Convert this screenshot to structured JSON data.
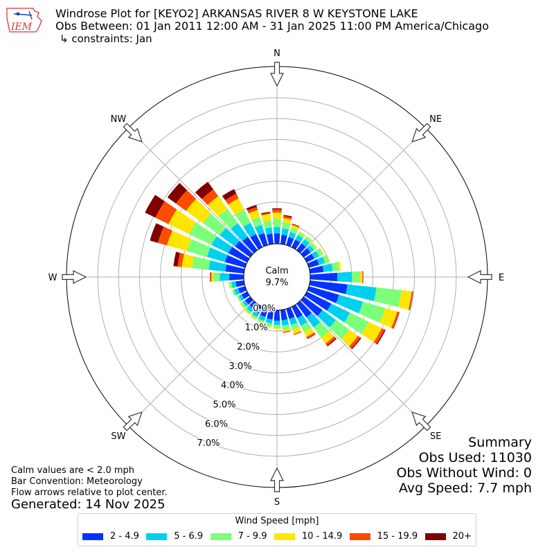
{
  "header": {
    "logo_text": "IEM",
    "title": "Windrose Plot for [KEYO2] ARKANSAS RIVER 8 W KEYSTONE LAKE",
    "subtitle": "Obs Between: 01 Jan 2011 12:00 AM - 31 Jan 2025 11:00 PM America/Chicago",
    "constraints": "↳ constraints: Jan"
  },
  "notes": {
    "calm_note": "Calm values are < 2.0 mph",
    "bar_convention": "Bar Convention: Meteorology",
    "flow_note": "Flow arrows relative to plot center.",
    "generated": "Generated: 14 Nov 2025"
  },
  "summary": {
    "heading": "Summary",
    "obs_used": "Obs Used: 11030",
    "obs_without_wind": "Obs Without Wind: 0",
    "avg_speed": "Avg Speed: 7.7 mph"
  },
  "colors": {
    "bins": [
      "#0433ff",
      "#00d0f0",
      "#7cff7a",
      "#ffe600",
      "#ff4a00",
      "#800000"
    ]
  },
  "chart_data": {
    "type": "windrose",
    "calm_label": "Calm",
    "calm_value": "9.7%",
    "radial_ticks": [
      0,
      1,
      2,
      3,
      4,
      5,
      6,
      7
    ],
    "radial_tick_labels": [
      "0.0%",
      "1.0%",
      "2.0%",
      "3.0%",
      "4.0%",
      "5.0%",
      "6.0%",
      "7.0%"
    ],
    "rmax": 8.5,
    "compass_labels": [
      "N",
      "NE",
      "E",
      "SE",
      "S",
      "SW",
      "W",
      "NW"
    ],
    "direction_step_deg": 10,
    "directions_deg": [
      0,
      10,
      20,
      30,
      40,
      50,
      60,
      70,
      80,
      90,
      100,
      110,
      120,
      130,
      140,
      150,
      160,
      170,
      180,
      190,
      200,
      210,
      220,
      230,
      240,
      250,
      260,
      270,
      280,
      290,
      300,
      310,
      320,
      330,
      340,
      350
    ],
    "legend_title": "Wind Speed [mph]",
    "speed_bins": [
      "2 - 4.9",
      "5 - 6.9",
      "7 - 9.9",
      "10 - 14.9",
      "15 - 19.9",
      "20+"
    ],
    "series": [
      {
        "name": "2 - 4.9",
        "values": [
          0.5,
          0.45,
          0.4,
          0.4,
          0.4,
          0.4,
          0.4,
          0.5,
          0.65,
          1.3,
          1.8,
          1.5,
          1.3,
          1.1,
          0.8,
          0.6,
          0.5,
          0.5,
          0.5,
          0.45,
          0.4,
          0.35,
          0.3,
          0.3,
          0.3,
          0.35,
          0.4,
          0.7,
          0.9,
          1.0,
          1.0,
          0.9,
          0.8,
          0.7,
          0.6,
          0.5
        ]
      },
      {
        "name": "5 - 6.9",
        "values": [
          0.3,
          0.3,
          0.25,
          0.25,
          0.25,
          0.2,
          0.25,
          0.3,
          0.45,
          0.7,
          1.4,
          1.2,
          1.0,
          0.8,
          0.6,
          0.4,
          0.3,
          0.25,
          0.2,
          0.2,
          0.2,
          0.2,
          0.2,
          0.15,
          0.15,
          0.2,
          0.2,
          0.45,
          0.8,
          0.9,
          0.9,
          0.9,
          0.8,
          0.6,
          0.4,
          0.3
        ]
      },
      {
        "name": "7 - 9.9",
        "values": [
          0.4,
          0.3,
          0.2,
          0.15,
          0.15,
          0.15,
          0.2,
          0.2,
          0.3,
          0.4,
          1.2,
          1.1,
          1.0,
          0.8,
          0.6,
          0.35,
          0.25,
          0.2,
          0.15,
          0.15,
          0.1,
          0.1,
          0.1,
          0.1,
          0.1,
          0.1,
          0.1,
          0.3,
          0.8,
          1.0,
          1.2,
          1.0,
          0.85,
          0.7,
          0.4,
          0.35
        ]
      },
      {
        "name": "10 - 14.9",
        "values": [
          0.3,
          0.2,
          0.15,
          0.05,
          0.05,
          0.05,
          0.05,
          0.05,
          0.1,
          0.1,
          0.5,
          0.6,
          0.7,
          0.5,
          0.35,
          0.25,
          0.2,
          0.1,
          0.05,
          0.05,
          0.05,
          0.05,
          0.05,
          0.05,
          0.0,
          0.0,
          0.05,
          0.1,
          0.5,
          1.0,
          1.1,
          1.0,
          0.75,
          0.6,
          0.35,
          0.3
        ]
      },
      {
        "name": "15 - 19.9",
        "values": [
          0.15,
          0.1,
          0.05,
          0.0,
          0.0,
          0.0,
          0.0,
          0.0,
          0.0,
          0.05,
          0.05,
          0.1,
          0.15,
          0.15,
          0.12,
          0.1,
          0.05,
          0.05,
          0.0,
          0.0,
          0.0,
          0.0,
          0.0,
          0.0,
          0.0,
          0.0,
          0.0,
          0.05,
          0.2,
          0.45,
          0.7,
          0.6,
          0.4,
          0.25,
          0.15,
          0.05
        ]
      },
      {
        "name": "20+",
        "values": [
          0.05,
          0.05,
          0.02,
          0.0,
          0.0,
          0.0,
          0.0,
          0.0,
          0.0,
          0.0,
          0.02,
          0.02,
          0.05,
          0.05,
          0.05,
          0.02,
          0.0,
          0.0,
          0.0,
          0.0,
          0.0,
          0.0,
          0.0,
          0.0,
          0.0,
          0.0,
          0.0,
          0.02,
          0.2,
          0.4,
          0.55,
          0.5,
          0.45,
          0.25,
          0.1,
          0.05
        ]
      }
    ]
  }
}
